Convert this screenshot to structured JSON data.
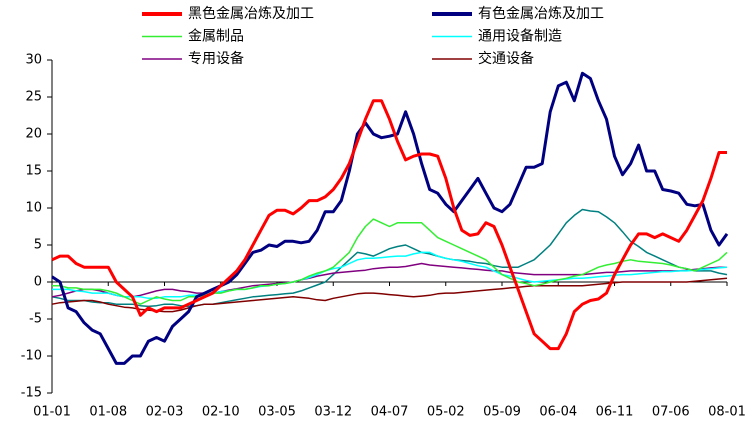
{
  "chart_data": {
    "type": "line",
    "categories": [
      "01-01",
      null,
      null,
      null,
      null,
      null,
      null,
      "01-08",
      null,
      null,
      null,
      null,
      null,
      null,
      "02-03",
      null,
      null,
      null,
      null,
      null,
      null,
      "02-10",
      null,
      null,
      null,
      null,
      null,
      null,
      "03-05",
      null,
      null,
      null,
      null,
      null,
      null,
      "03-12",
      null,
      null,
      null,
      null,
      null,
      null,
      "04-07",
      null,
      null,
      null,
      null,
      null,
      null,
      "05-02",
      null,
      null,
      null,
      null,
      null,
      null,
      "05-09",
      null,
      null,
      null,
      null,
      null,
      null,
      "06-04",
      null,
      null,
      null,
      null,
      null,
      null,
      "06-11",
      null,
      null,
      null,
      null,
      null,
      null,
      "07-06",
      null,
      null,
      null,
      null,
      null,
      null,
      "08-01"
    ],
    "ylim": [
      -15,
      30
    ],
    "yticks": [
      -15,
      -10,
      -5,
      0,
      5,
      10,
      15,
      20,
      25,
      30
    ],
    "series": [
      {
        "name": "黑色金属冶炼及加工",
        "color": "#ff0000",
        "values": [
          3,
          3.5,
          3.5,
          2.5,
          2,
          2,
          2,
          2,
          0,
          -1,
          -2,
          -4.5,
          -3.5,
          -4,
          -3.5,
          -3.5,
          -3.5,
          -3,
          -2.5,
          -2,
          -1.5,
          -0.5,
          0.5,
          1.5,
          3,
          5,
          7,
          9,
          9.7,
          9.7,
          9.2,
          10,
          11,
          11,
          11.5,
          12.5,
          14,
          16,
          19,
          22,
          24.5,
          24.5,
          22,
          19,
          16.5,
          17,
          17.3,
          17.3,
          17,
          14,
          10,
          7,
          6.3,
          6.5,
          8,
          7.5,
          5,
          2,
          -1,
          -4,
          -7,
          -8,
          -9,
          -9,
          -7,
          -4,
          -3,
          -2.5,
          -2.3,
          -1.5,
          1,
          3,
          5,
          6.5,
          6.5,
          6,
          6.5,
          6,
          5.5,
          7,
          9,
          11,
          14,
          17.5,
          17.5
        ]
      },
      {
        "name": "有色金属冶炼及加工",
        "color": "#000080",
        "values": [
          0.7,
          0,
          -3.5,
          -4,
          -5.5,
          -6.5,
          -7,
          -9,
          -11,
          -11,
          -10,
          -10,
          -8,
          -7.5,
          -8,
          -6,
          -5,
          -4,
          -2,
          -1.5,
          -1,
          -0.5,
          0,
          1,
          2.5,
          4,
          4.3,
          5,
          4.8,
          5.5,
          5.5,
          5.3,
          5.5,
          7,
          9.5,
          9.5,
          11,
          15,
          20,
          21.5,
          20,
          19.5,
          19.7,
          20,
          23,
          20,
          16,
          12.5,
          12,
          10.5,
          9.5,
          11,
          12.5,
          14,
          12,
          10,
          9.5,
          10.5,
          13,
          15.5,
          15.5,
          16,
          23,
          26.5,
          27,
          24.5,
          28.2,
          27.5,
          24.5,
          22,
          17,
          14.5,
          16,
          18.5,
          15,
          15,
          12.5,
          12.3,
          12,
          10.5,
          10.3,
          10.5,
          7,
          5,
          6.5
        ]
      },
      {
        "name": "金属制品",
        "color": "#33ee33",
        "values": [
          -0.5,
          -0.5,
          -0.8,
          -0.8,
          -1,
          -1,
          -1,
          -1.2,
          -1.5,
          -2,
          -2.5,
          -3,
          -2.5,
          -2,
          -2.3,
          -2.5,
          -2.5,
          -2,
          -2,
          -1.8,
          -1.5,
          -1.5,
          -1.2,
          -1,
          -1,
          -0.8,
          -0.5,
          -0.5,
          -0.3,
          -0.2,
          0,
          0.3,
          0.8,
          1.2,
          1.5,
          2,
          3,
          4,
          6,
          7.5,
          8.5,
          8,
          7.5,
          8,
          8,
          8,
          8,
          7,
          6,
          5.5,
          5,
          4.5,
          4,
          3.5,
          3,
          2,
          1,
          0.5,
          0,
          -0.2,
          -0.5,
          -0.3,
          0,
          0.3,
          0.5,
          0.8,
          1,
          1.5,
          2,
          2.3,
          2.5,
          2.8,
          3,
          2.8,
          2.7,
          2.6,
          2.5,
          2.3,
          2,
          1.8,
          1.5,
          2,
          2.5,
          3,
          4
        ]
      },
      {
        "name": "通用设备制造",
        "color": "#00ffff",
        "values": [
          -1,
          -1,
          -1,
          -1.2,
          -1.3,
          -1.5,
          -1.5,
          -1.5,
          -1.8,
          -2,
          -2,
          -2,
          -2.2,
          -2.2,
          -2,
          -2,
          -2,
          -1.8,
          -1.8,
          -1.5,
          -1.5,
          -1.3,
          -1.2,
          -1,
          -1,
          -0.8,
          -0.6,
          -0.5,
          -0.3,
          -0.2,
          0,
          0.3,
          0.6,
          1,
          1.5,
          1.8,
          2,
          2.5,
          3,
          3.2,
          3.2,
          3.3,
          3.4,
          3.5,
          3.5,
          3.8,
          4,
          4,
          3.5,
          3.2,
          3,
          2.8,
          2.5,
          2.2,
          2,
          1.5,
          1,
          0.8,
          0.5,
          0.2,
          0,
          0.1,
          0.2,
          0.3,
          0.4,
          0.5,
          0.5,
          0.6,
          0.7,
          0.8,
          0.9,
          1,
          1,
          1.1,
          1.2,
          1.3,
          1.4,
          1.4,
          1.5,
          1.5,
          1.6,
          1.7,
          1.8,
          1.9,
          2
        ]
      },
      {
        "name": "专用设备",
        "color": "#800080",
        "values": [
          -2,
          -1.8,
          -1.5,
          -1.2,
          -1,
          -1,
          -1.2,
          -1.5,
          -1.8,
          -2,
          -2,
          -1.8,
          -1.5,
          -1.2,
          -1,
          -1,
          -1.2,
          -1.3,
          -1.5,
          -1.5,
          -1.5,
          -1.3,
          -1.1,
          -0.9,
          -0.7,
          -0.5,
          -0.4,
          -0.3,
          -0.2,
          -0.1,
          0,
          0.3,
          0.5,
          0.8,
          1,
          1.2,
          1.3,
          1.4,
          1.5,
          1.6,
          1.8,
          1.9,
          2,
          2,
          2.1,
          2.3,
          2.5,
          2.3,
          2.2,
          2.1,
          2,
          1.9,
          1.8,
          1.7,
          1.6,
          1.5,
          1.5,
          1.3,
          1.2,
          1.1,
          1,
          1,
          1,
          1,
          1,
          1,
          1,
          1.1,
          1.2,
          1.3,
          1.3,
          1.4,
          1.5,
          1.5,
          1.5,
          1.5,
          1.5,
          1.5,
          1.5,
          1.6,
          1.7,
          1.8,
          1.9,
          2,
          2
        ]
      },
      {
        "name": "交通设备",
        "color": "#800000",
        "values": [
          -3,
          -2.8,
          -2.7,
          -2.6,
          -2.5,
          -2.5,
          -2.7,
          -3,
          -3.2,
          -3.4,
          -3.5,
          -3.7,
          -3.8,
          -3.9,
          -4,
          -4,
          -3.8,
          -3.5,
          -3.2,
          -3,
          -3,
          -2.9,
          -2.8,
          -2.7,
          -2.6,
          -2.5,
          -2.4,
          -2.3,
          -2.2,
          -2.1,
          -2,
          -2.1,
          -2.2,
          -2.4,
          -2.5,
          -2.2,
          -2,
          -1.8,
          -1.6,
          -1.5,
          -1.5,
          -1.6,
          -1.7,
          -1.8,
          -1.9,
          -2,
          -1.9,
          -1.8,
          -1.6,
          -1.5,
          -1.5,
          -1.4,
          -1.3,
          -1.2,
          -1.1,
          -1,
          -0.9,
          -0.8,
          -0.7,
          -0.6,
          -0.5,
          -0.5,
          -0.5,
          -0.5,
          -0.5,
          -0.5,
          -0.5,
          -0.4,
          -0.3,
          -0.2,
          -0.1,
          0,
          0,
          0,
          0,
          0,
          0,
          0,
          0,
          0,
          0.1,
          0.2,
          0.3,
          0.4,
          0.5
        ]
      },
      {
        "color": "#008080",
        "values": [
          -2,
          -2.2,
          -2.5,
          -2.5,
          -2.5,
          -2.7,
          -2.8,
          -2.8,
          -3,
          -3,
          -3,
          -3.2,
          -3.3,
          -3.2,
          -3,
          -3,
          -3.2,
          -3.3,
          -3.2,
          -3,
          -3,
          -2.8,
          -2.6,
          -2.4,
          -2.2,
          -2,
          -1.9,
          -1.8,
          -1.7,
          -1.6,
          -1.5,
          -1.2,
          -0.8,
          -0.4,
          0,
          1,
          2,
          3,
          4,
          3.8,
          3.5,
          4,
          4.5,
          4.8,
          5,
          4.5,
          4,
          3.8,
          3.5,
          3.2,
          3,
          2.9,
          2.8,
          2.6,
          2.5,
          2.2,
          2,
          2,
          2,
          2.5,
          3,
          4,
          5,
          6.5,
          8,
          9,
          9.8,
          9.6,
          9.5,
          8.8,
          8,
          6.8,
          5.5,
          4.8,
          4,
          3.5,
          3,
          2.5,
          2,
          1.8,
          1.5,
          1.5,
          1.5,
          1.2,
          1
        ]
      }
    ]
  }
}
